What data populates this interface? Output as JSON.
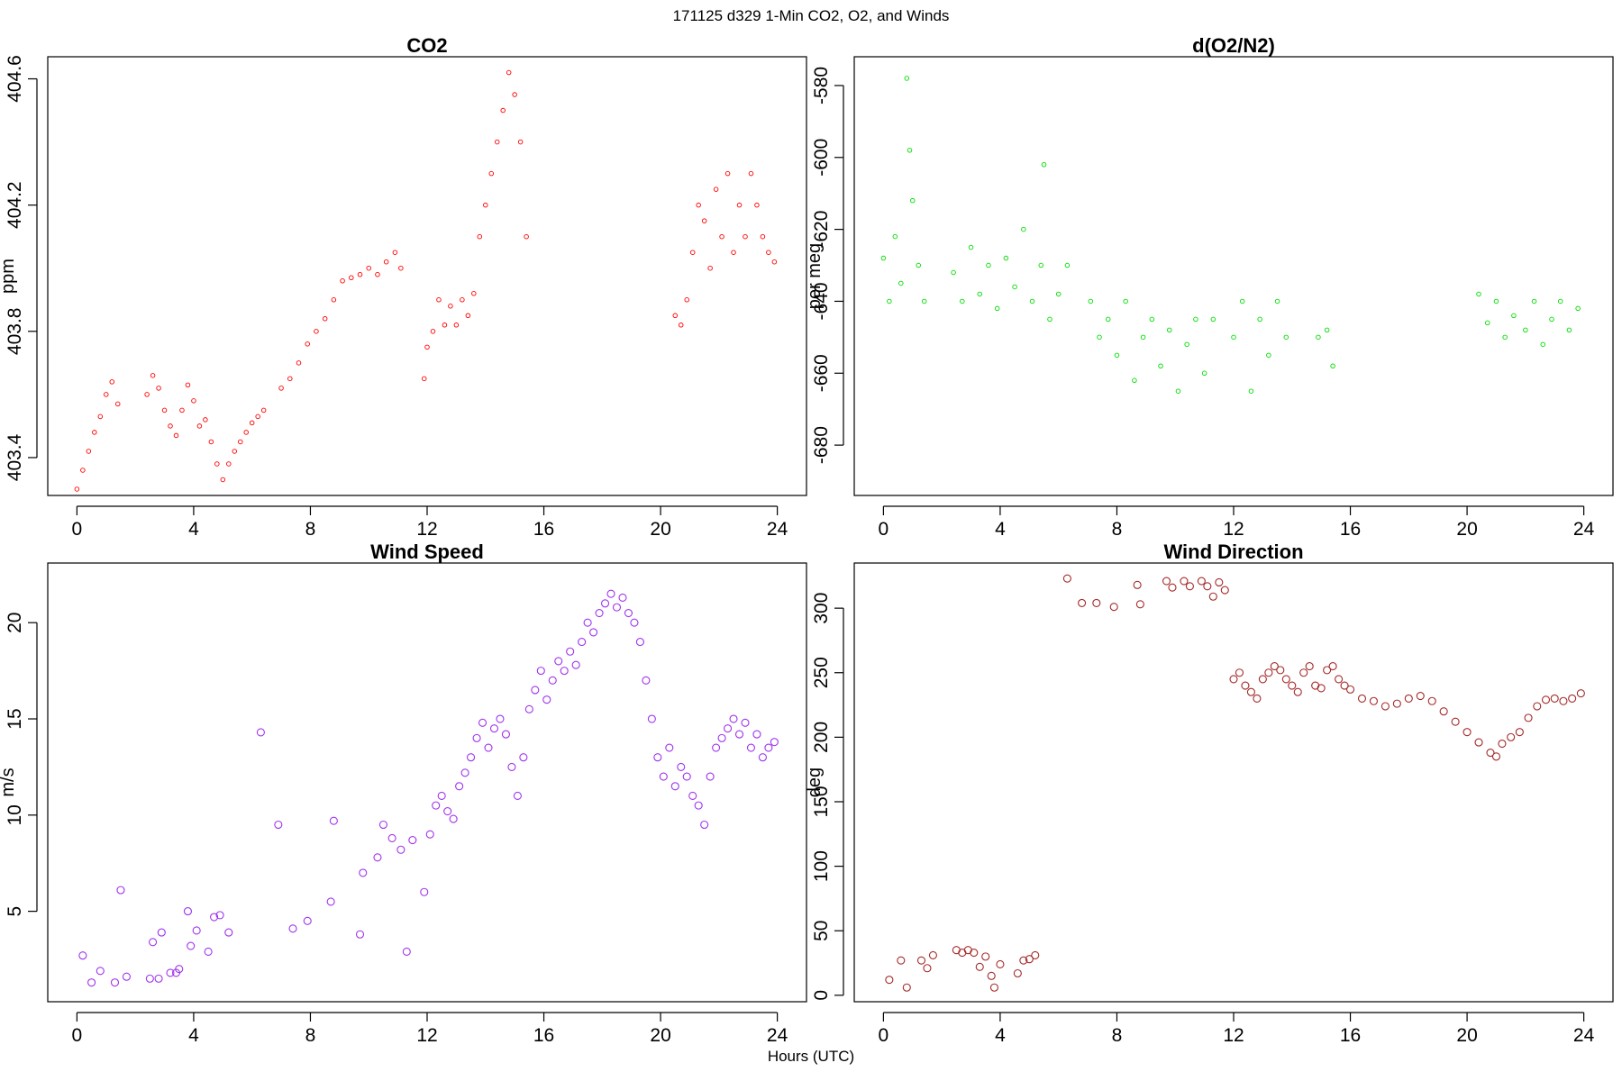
{
  "figure": {
    "title": "171125   d329   1-Min CO2, O2, and Winds",
    "x_axis_label": "Hours (UTC)"
  },
  "chart_data": [
    {
      "type": "scatter",
      "title": "CO2",
      "xlabel": "",
      "ylabel": "ppm",
      "xlim": [
        -1,
        25
      ],
      "ylim": [
        403.28,
        404.67
      ],
      "xticks": [
        0,
        4,
        8,
        12,
        16,
        20,
        24
      ],
      "xtick_labels": [
        "0",
        "4",
        "8",
        "12",
        "16",
        "20",
        "24"
      ],
      "yticks": [
        403.4,
        403.8,
        404.2,
        404.6
      ],
      "ytick_labels": [
        "403.4",
        "403.8",
        "404.2",
        "404.6"
      ],
      "grid": false,
      "color": "#ff0000",
      "marker_size": "small",
      "points": [
        [
          0.0,
          403.3
        ],
        [
          0.2,
          403.36
        ],
        [
          0.4,
          403.42
        ],
        [
          0.6,
          403.48
        ],
        [
          0.8,
          403.53
        ],
        [
          1.0,
          403.6
        ],
        [
          1.2,
          403.64
        ],
        [
          1.4,
          403.57
        ],
        [
          2.4,
          403.6
        ],
        [
          2.6,
          403.66
        ],
        [
          2.8,
          403.62
        ],
        [
          3.0,
          403.55
        ],
        [
          3.2,
          403.5
        ],
        [
          3.4,
          403.47
        ],
        [
          3.6,
          403.55
        ],
        [
          3.8,
          403.63
        ],
        [
          4.0,
          403.58
        ],
        [
          4.2,
          403.5
        ],
        [
          4.4,
          403.52
        ],
        [
          4.6,
          403.45
        ],
        [
          4.8,
          403.38
        ],
        [
          5.0,
          403.33
        ],
        [
          5.2,
          403.38
        ],
        [
          5.4,
          403.42
        ],
        [
          5.6,
          403.45
        ],
        [
          5.8,
          403.48
        ],
        [
          6.0,
          403.51
        ],
        [
          6.2,
          403.53
        ],
        [
          6.4,
          403.55
        ],
        [
          7.0,
          403.62
        ],
        [
          7.3,
          403.65
        ],
        [
          7.6,
          403.7
        ],
        [
          7.9,
          403.76
        ],
        [
          8.2,
          403.8
        ],
        [
          8.5,
          403.84
        ],
        [
          8.8,
          403.9
        ],
        [
          9.1,
          403.96
        ],
        [
          9.4,
          403.97
        ],
        [
          9.7,
          403.98
        ],
        [
          10.0,
          404.0
        ],
        [
          10.3,
          403.98
        ],
        [
          10.6,
          404.02
        ],
        [
          10.9,
          404.05
        ],
        [
          11.1,
          404.0
        ],
        [
          11.9,
          403.65
        ],
        [
          12.0,
          403.75
        ],
        [
          12.2,
          403.8
        ],
        [
          12.4,
          403.9
        ],
        [
          12.6,
          403.82
        ],
        [
          12.8,
          403.88
        ],
        [
          13.0,
          403.82
        ],
        [
          13.2,
          403.9
        ],
        [
          13.4,
          403.85
        ],
        [
          13.6,
          403.92
        ],
        [
          13.8,
          404.1
        ],
        [
          14.0,
          404.2
        ],
        [
          14.2,
          404.3
        ],
        [
          14.4,
          404.4
        ],
        [
          14.6,
          404.5
        ],
        [
          14.8,
          404.62
        ],
        [
          15.0,
          404.55
        ],
        [
          15.2,
          404.4
        ],
        [
          15.4,
          404.1
        ],
        [
          20.5,
          403.85
        ],
        [
          20.7,
          403.82
        ],
        [
          20.9,
          403.9
        ],
        [
          21.1,
          404.05
        ],
        [
          21.3,
          404.2
        ],
        [
          21.5,
          404.15
        ],
        [
          21.7,
          404.0
        ],
        [
          21.9,
          404.25
        ],
        [
          22.1,
          404.1
        ],
        [
          22.3,
          404.3
        ],
        [
          22.5,
          404.05
        ],
        [
          22.7,
          404.2
        ],
        [
          22.9,
          404.1
        ],
        [
          23.1,
          404.3
        ],
        [
          23.3,
          404.2
        ],
        [
          23.5,
          404.1
        ],
        [
          23.7,
          404.05
        ],
        [
          23.9,
          404.02
        ]
      ]
    },
    {
      "type": "scatter",
      "title": "d(O2/N2)",
      "xlabel": "",
      "ylabel": "per meg",
      "xlim": [
        -1,
        25
      ],
      "ylim": [
        -694,
        -572
      ],
      "xticks": [
        0,
        4,
        8,
        12,
        16,
        20,
        24
      ],
      "xtick_labels": [
        "0",
        "4",
        "8",
        "12",
        "16",
        "20",
        "24"
      ],
      "yticks": [
        -680,
        -660,
        -640,
        -620,
        -600,
        -580
      ],
      "ytick_labels": [
        "-680",
        "-660",
        "-640",
        "-620",
        "-600",
        "-580"
      ],
      "grid": false,
      "color": "#00dd00",
      "marker_size": "small",
      "points": [
        [
          0.0,
          -628
        ],
        [
          0.2,
          -640
        ],
        [
          0.4,
          -622
        ],
        [
          0.6,
          -635
        ],
        [
          0.8,
          -578
        ],
        [
          0.9,
          -598
        ],
        [
          1.0,
          -612
        ],
        [
          1.2,
          -630
        ],
        [
          1.4,
          -640
        ],
        [
          2.4,
          -632
        ],
        [
          2.7,
          -640
        ],
        [
          3.0,
          -625
        ],
        [
          3.3,
          -638
        ],
        [
          3.6,
          -630
        ],
        [
          3.9,
          -642
        ],
        [
          4.2,
          -628
        ],
        [
          4.5,
          -636
        ],
        [
          4.8,
          -620
        ],
        [
          5.1,
          -640
        ],
        [
          5.4,
          -630
        ],
        [
          5.5,
          -602
        ],
        [
          5.7,
          -645
        ],
        [
          6.0,
          -638
        ],
        [
          6.3,
          -630
        ],
        [
          7.1,
          -640
        ],
        [
          7.4,
          -650
        ],
        [
          7.7,
          -645
        ],
        [
          8.0,
          -655
        ],
        [
          8.3,
          -640
        ],
        [
          8.6,
          -662
        ],
        [
          8.9,
          -650
        ],
        [
          9.2,
          -645
        ],
        [
          9.5,
          -658
        ],
        [
          9.8,
          -648
        ],
        [
          10.1,
          -665
        ],
        [
          10.4,
          -652
        ],
        [
          10.7,
          -645
        ],
        [
          11.0,
          -660
        ],
        [
          11.3,
          -645
        ],
        [
          12.0,
          -650
        ],
        [
          12.3,
          -640
        ],
        [
          12.6,
          -665
        ],
        [
          12.9,
          -645
        ],
        [
          13.2,
          -655
        ],
        [
          13.5,
          -640
        ],
        [
          13.8,
          -650
        ],
        [
          14.9,
          -650
        ],
        [
          15.2,
          -648
        ],
        [
          15.4,
          -658
        ],
        [
          20.4,
          -638
        ],
        [
          20.7,
          -646
        ],
        [
          21.0,
          -640
        ],
        [
          21.3,
          -650
        ],
        [
          21.6,
          -644
        ],
        [
          22.0,
          -648
        ],
        [
          22.3,
          -640
        ],
        [
          22.6,
          -652
        ],
        [
          22.9,
          -645
        ],
        [
          23.2,
          -640
        ],
        [
          23.5,
          -648
        ],
        [
          23.8,
          -642
        ]
      ]
    },
    {
      "type": "scatter",
      "title": "Wind Speed",
      "xlabel": "",
      "ylabel": "m/s",
      "xlim": [
        -1,
        25
      ],
      "ylim": [
        0.3,
        23.1
      ],
      "xticks": [
        0,
        4,
        8,
        12,
        16,
        20,
        24
      ],
      "xtick_labels": [
        "0",
        "4",
        "8",
        "12",
        "16",
        "20",
        "24"
      ],
      "yticks": [
        5,
        10,
        15,
        20
      ],
      "ytick_labels": [
        "5",
        "10",
        "15",
        "20"
      ],
      "grid": false,
      "color": "#a033ee",
      "marker_size": "large",
      "points": [
        [
          0.2,
          2.7
        ],
        [
          0.5,
          1.3
        ],
        [
          0.8,
          1.9
        ],
        [
          1.3,
          1.3
        ],
        [
          1.5,
          6.1
        ],
        [
          1.7,
          1.6
        ],
        [
          2.5,
          1.5
        ],
        [
          2.6,
          3.4
        ],
        [
          2.8,
          1.5
        ],
        [
          2.9,
          3.9
        ],
        [
          3.2,
          1.8
        ],
        [
          3.4,
          1.8
        ],
        [
          3.5,
          2.0
        ],
        [
          3.8,
          5.0
        ],
        [
          3.9,
          3.2
        ],
        [
          4.1,
          4.0
        ],
        [
          4.5,
          2.9
        ],
        [
          4.7,
          4.7
        ],
        [
          4.9,
          4.8
        ],
        [
          5.2,
          3.9
        ],
        [
          6.3,
          14.3
        ],
        [
          6.9,
          9.5
        ],
        [
          7.4,
          4.1
        ],
        [
          7.9,
          4.5
        ],
        [
          8.7,
          5.5
        ],
        [
          8.8,
          9.7
        ],
        [
          9.7,
          3.8
        ],
        [
          9.8,
          7.0
        ],
        [
          10.3,
          7.8
        ],
        [
          10.5,
          9.5
        ],
        [
          10.8,
          8.8
        ],
        [
          11.1,
          8.2
        ],
        [
          11.3,
          2.9
        ],
        [
          11.5,
          8.7
        ],
        [
          11.9,
          6.0
        ],
        [
          12.1,
          9.0
        ],
        [
          12.3,
          10.5
        ],
        [
          12.5,
          11.0
        ],
        [
          12.7,
          10.2
        ],
        [
          12.9,
          9.8
        ],
        [
          13.1,
          11.5
        ],
        [
          13.3,
          12.2
        ],
        [
          13.5,
          13.0
        ],
        [
          13.7,
          14.0
        ],
        [
          13.9,
          14.8
        ],
        [
          14.1,
          13.5
        ],
        [
          14.3,
          14.5
        ],
        [
          14.5,
          15.0
        ],
        [
          14.7,
          14.2
        ],
        [
          14.9,
          12.5
        ],
        [
          15.1,
          11.0
        ],
        [
          15.3,
          13.0
        ],
        [
          15.5,
          15.5
        ],
        [
          15.7,
          16.5
        ],
        [
          15.9,
          17.5
        ],
        [
          16.1,
          16.0
        ],
        [
          16.3,
          17.0
        ],
        [
          16.5,
          18.0
        ],
        [
          16.7,
          17.5
        ],
        [
          16.9,
          18.5
        ],
        [
          17.1,
          17.8
        ],
        [
          17.3,
          19.0
        ],
        [
          17.5,
          20.0
        ],
        [
          17.7,
          19.5
        ],
        [
          17.9,
          20.5
        ],
        [
          18.1,
          21.0
        ],
        [
          18.3,
          21.5
        ],
        [
          18.5,
          20.8
        ],
        [
          18.7,
          21.3
        ],
        [
          18.9,
          20.5
        ],
        [
          19.1,
          20.0
        ],
        [
          19.3,
          19.0
        ],
        [
          19.5,
          17.0
        ],
        [
          19.7,
          15.0
        ],
        [
          19.9,
          13.0
        ],
        [
          20.1,
          12.0
        ],
        [
          20.3,
          13.5
        ],
        [
          20.5,
          11.5
        ],
        [
          20.7,
          12.5
        ],
        [
          20.9,
          12.0
        ],
        [
          21.1,
          11.0
        ],
        [
          21.3,
          10.5
        ],
        [
          21.5,
          9.5
        ],
        [
          21.7,
          12.0
        ],
        [
          21.9,
          13.5
        ],
        [
          22.1,
          14.0
        ],
        [
          22.3,
          14.5
        ],
        [
          22.5,
          15.0
        ],
        [
          22.7,
          14.2
        ],
        [
          22.9,
          14.8
        ],
        [
          23.1,
          13.5
        ],
        [
          23.3,
          14.2
        ],
        [
          23.5,
          13.0
        ],
        [
          23.7,
          13.5
        ],
        [
          23.9,
          13.8
        ]
      ]
    },
    {
      "type": "scatter",
      "title": "Wind Direction",
      "xlabel": "",
      "ylabel": "deg",
      "xlim": [
        -1,
        25
      ],
      "ylim": [
        -5,
        335
      ],
      "xticks": [
        0,
        4,
        8,
        12,
        16,
        20,
        24
      ],
      "xtick_labels": [
        "0",
        "4",
        "8",
        "12",
        "16",
        "20",
        "24"
      ],
      "yticks": [
        0,
        50,
        100,
        150,
        200,
        250,
        300
      ],
      "ytick_labels": [
        "0",
        "50",
        "100",
        "150",
        "200",
        "250",
        "300"
      ],
      "grid": false,
      "color": "#a52a2a",
      "marker_size": "large",
      "points": [
        [
          0.2,
          12
        ],
        [
          0.6,
          27
        ],
        [
          0.8,
          6
        ],
        [
          1.3,
          27
        ],
        [
          1.5,
          21
        ],
        [
          1.7,
          31
        ],
        [
          2.5,
          35
        ],
        [
          2.7,
          33
        ],
        [
          2.9,
          35
        ],
        [
          3.1,
          33
        ],
        [
          3.3,
          22
        ],
        [
          3.5,
          30
        ],
        [
          3.7,
          15
        ],
        [
          3.8,
          6
        ],
        [
          4.0,
          24
        ],
        [
          4.6,
          17
        ],
        [
          4.8,
          27
        ],
        [
          5.0,
          28
        ],
        [
          5.2,
          31
        ],
        [
          6.3,
          323
        ],
        [
          6.8,
          304
        ],
        [
          7.3,
          304
        ],
        [
          7.9,
          301
        ],
        [
          8.7,
          318
        ],
        [
          8.8,
          303
        ],
        [
          9.7,
          321
        ],
        [
          9.9,
          316
        ],
        [
          10.3,
          321
        ],
        [
          10.5,
          317
        ],
        [
          10.9,
          321
        ],
        [
          11.1,
          317
        ],
        [
          11.3,
          309
        ],
        [
          11.5,
          320
        ],
        [
          11.7,
          314
        ],
        [
          12.0,
          245
        ],
        [
          12.2,
          250
        ],
        [
          12.4,
          240
        ],
        [
          12.6,
          235
        ],
        [
          12.8,
          230
        ],
        [
          13.0,
          245
        ],
        [
          13.2,
          250
        ],
        [
          13.4,
          255
        ],
        [
          13.6,
          252
        ],
        [
          13.8,
          245
        ],
        [
          14.0,
          240
        ],
        [
          14.2,
          235
        ],
        [
          14.4,
          250
        ],
        [
          14.6,
          255
        ],
        [
          14.8,
          240
        ],
        [
          15.0,
          238
        ],
        [
          15.2,
          252
        ],
        [
          15.4,
          255
        ],
        [
          15.6,
          245
        ],
        [
          15.8,
          240
        ],
        [
          16.0,
          237
        ],
        [
          16.4,
          230
        ],
        [
          16.8,
          228
        ],
        [
          17.2,
          224
        ],
        [
          17.6,
          226
        ],
        [
          18.0,
          230
        ],
        [
          18.4,
          232
        ],
        [
          18.8,
          228
        ],
        [
          19.2,
          220
        ],
        [
          19.6,
          212
        ],
        [
          20.0,
          204
        ],
        [
          20.4,
          196
        ],
        [
          20.8,
          188
        ],
        [
          21.0,
          185
        ],
        [
          21.2,
          195
        ],
        [
          21.5,
          200
        ],
        [
          21.8,
          204
        ],
        [
          22.1,
          215
        ],
        [
          22.4,
          224
        ],
        [
          22.7,
          229
        ],
        [
          23.0,
          230
        ],
        [
          23.3,
          228
        ],
        [
          23.6,
          230
        ],
        [
          23.9,
          234
        ]
      ]
    }
  ]
}
